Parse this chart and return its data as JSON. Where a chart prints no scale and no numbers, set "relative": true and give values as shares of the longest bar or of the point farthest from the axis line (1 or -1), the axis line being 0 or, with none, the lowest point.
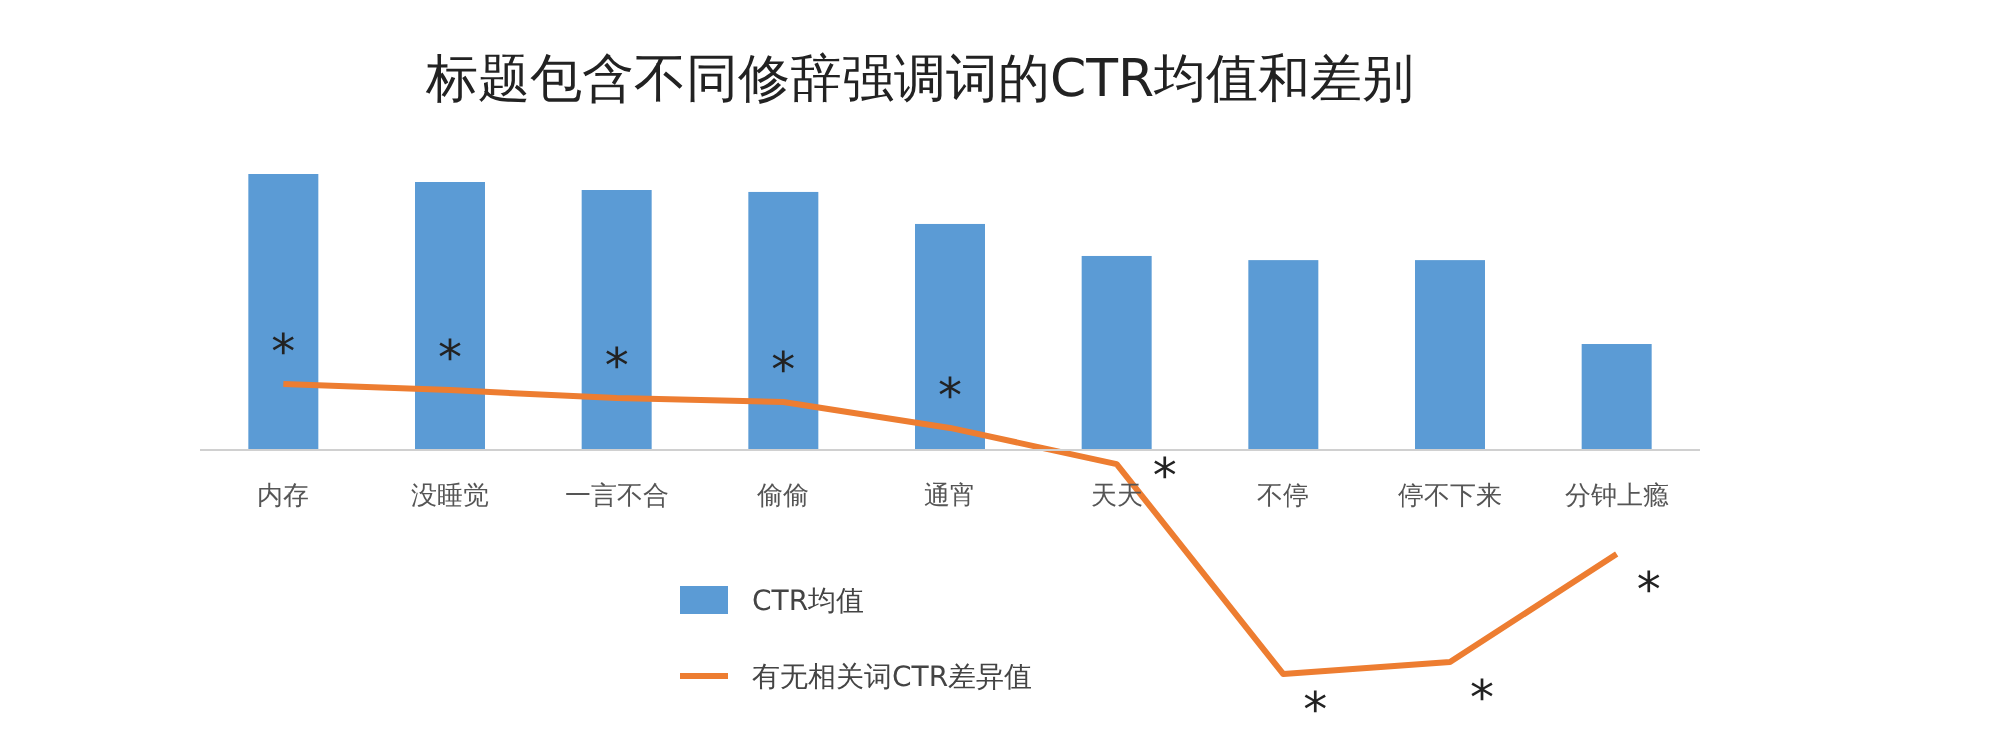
{
  "chart_data": {
    "type": "bar",
    "title": "标题包含不同修辞强调词的CTR均值和差别",
    "relative": true,
    "categories": [
      "内存",
      "没睡觉",
      "一言不合",
      "偷偷",
      "通宵",
      "天天",
      "不停",
      "停不下来",
      "分钟上瘾"
    ],
    "series": [
      {
        "name": "CTR均值",
        "color": "#5b9bd5",
        "values": [
          1,
          0.971,
          0.942,
          0.935,
          0.819,
          0.703,
          0.688,
          0.688,
          0.384
        ]
      },
      {
        "name": "有无相关词CTR差异值",
        "type": "line",
        "color": "#ed7d31",
        "values": [
          0.239,
          0.217,
          0.188,
          0.174,
          0.08,
          -0.051,
          -0.812,
          -0.768,
          -0.377
        ]
      }
    ],
    "annotations": [
      {
        "text": "*",
        "x": "内存",
        "y": 0.239
      },
      {
        "text": "*",
        "x": "没睡觉",
        "y": 0.217
      },
      {
        "text": "*",
        "x": "一言不合",
        "y": 0.188
      },
      {
        "text": "*",
        "x": "偷偷",
        "y": 0.174
      },
      {
        "text": "*",
        "x": "通宵",
        "y": 0.08
      },
      {
        "text": "*",
        "x": "天天",
        "y": -0.051
      },
      {
        "text": "*",
        "x": "不停",
        "y": -0.812
      },
      {
        "text": "*",
        "x": "停不下来",
        "y": -0.768
      },
      {
        "text": "*",
        "x": "分钟上瘾",
        "y": -0.377
      }
    ],
    "marker": "none",
    "line_style": "solid",
    "legend": "bottom"
  }
}
